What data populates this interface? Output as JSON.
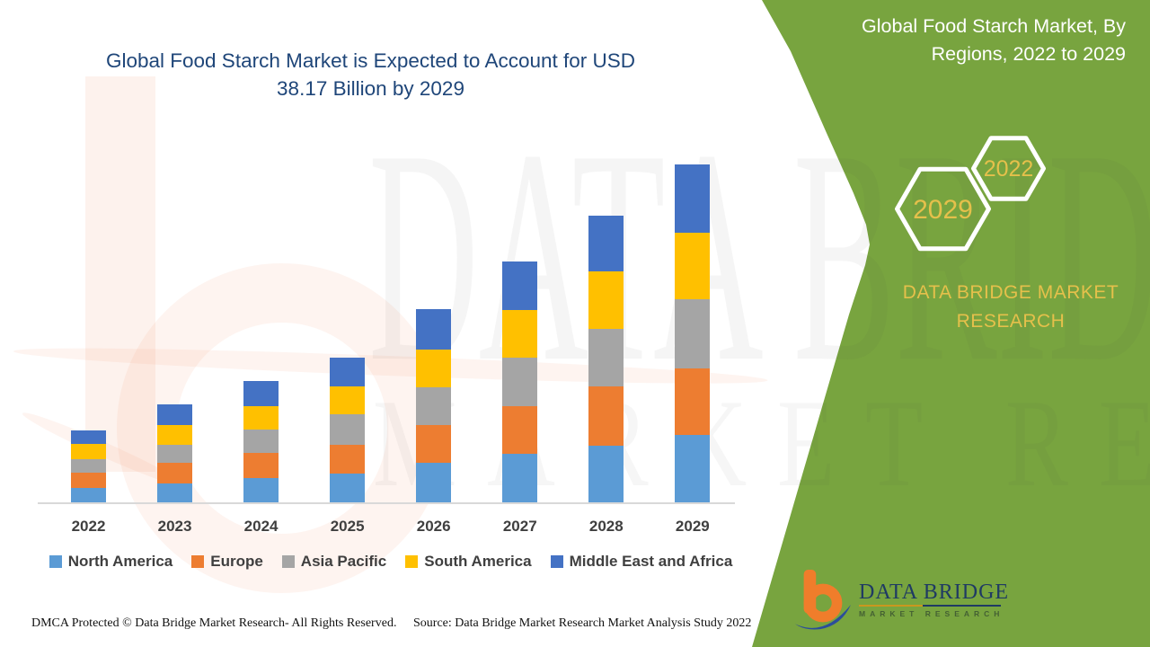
{
  "title": {
    "line1": "Global Food Starch Market is Expected to Account for USD",
    "line2": "38.17 Billion by 2029",
    "color": "#1F4679"
  },
  "side_panel": {
    "background_color": "#78A43F",
    "heading_line1": "Global Food Starch Market, By",
    "heading_line2": "Regions, 2022 to 2029",
    "hexagon_large_year": "2029",
    "hexagon_small_year": "2022",
    "year_text_color": "#E5C04B",
    "brand_caption": "DATA BRIDGE MARKET RESEARCH"
  },
  "watermark": {
    "logo_letter": "b",
    "line1": "DATA BRIDGE",
    "line2": "MARKET RESEARCH"
  },
  "chart_data": {
    "type": "bar",
    "stacked": true,
    "title": "Global Food Starch Market is Expected to Account for USD 38.17 Billion by 2029",
    "categories": [
      "2022",
      "2023",
      "2024",
      "2025",
      "2026",
      "2027",
      "2028",
      "2029"
    ],
    "series": [
      {
        "name": "North America",
        "color": "#5B9BD5",
        "values": [
          1.62,
          2.13,
          2.74,
          3.25,
          4.47,
          5.48,
          6.4,
          7.61
        ]
      },
      {
        "name": "Europe",
        "color": "#ED7D31",
        "values": [
          1.73,
          2.33,
          2.84,
          3.25,
          4.26,
          5.38,
          6.7,
          7.51
        ]
      },
      {
        "name": "Asia Pacific",
        "color": "#A5A5A5",
        "values": [
          1.52,
          2.03,
          2.64,
          3.45,
          4.26,
          5.48,
          6.5,
          7.82
        ]
      },
      {
        "name": "South America",
        "color": "#FFC000",
        "values": [
          1.73,
          2.23,
          2.64,
          3.15,
          4.26,
          5.38,
          6.5,
          7.51
        ]
      },
      {
        "name": "Middle East and Africa",
        "color": "#4472C4",
        "values": [
          1.52,
          2.33,
          2.84,
          3.25,
          4.57,
          5.48,
          6.29,
          7.72
        ]
      }
    ],
    "totals_by_year": [
      8.12,
      11.05,
      13.7,
      16.35,
      21.82,
      27.2,
      32.39,
      38.17
    ],
    "unit": "USD billion (estimated from bar heights; 2029 total labeled 38.17)",
    "xlabel": "",
    "ylabel": "",
    "ylim": [
      0,
      40
    ],
    "y_axis_visible": false,
    "grid": false,
    "legend_position": "bottom"
  },
  "footer": {
    "dmca": "DMCA Protected © Data Bridge Market Research- All Rights Reserved.",
    "source": "Source: Data Bridge Market Research Market Analysis Study 2022"
  },
  "logo": {
    "name": "DATA BRIDGE",
    "tagline": "MARKET RESEARCH"
  }
}
